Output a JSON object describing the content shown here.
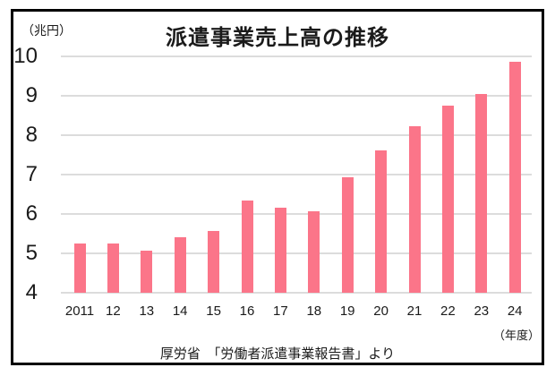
{
  "chart": {
    "title": "派遣事業売上高の推移",
    "unit_label": "（兆円）",
    "x_unit": "（年度）",
    "source": "厚労省　「労働者派遣事業報告書」より"
  },
  "chart_data": {
    "type": "bar",
    "title": "派遣事業売上高の推移",
    "categories": [
      "2011",
      "12",
      "13",
      "14",
      "15",
      "16",
      "17",
      "18",
      "19",
      "20",
      "21",
      "22",
      "23",
      "24"
    ],
    "values": [
      5.25,
      5.25,
      5.07,
      5.42,
      5.56,
      6.35,
      6.17,
      6.06,
      6.94,
      7.62,
      8.22,
      8.74,
      9.04,
      9.87
    ],
    "xlabel": "年度",
    "ylabel": "兆円",
    "ylim": [
      4,
      10
    ],
    "yticks": [
      10,
      9,
      8,
      7,
      6,
      5,
      4
    ],
    "grid": true,
    "legend": false,
    "bar_color": "#fb7589",
    "gridline_color": "#dcdcdc",
    "frame_color": "#000000"
  }
}
